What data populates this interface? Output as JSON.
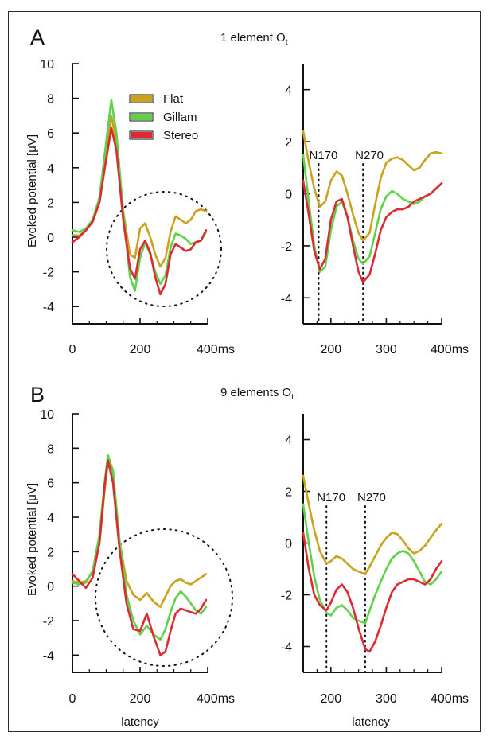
{
  "colors": {
    "flat": "#C9A21E",
    "gillam": "#5FD24A",
    "stereo": "#DD2A32"
  },
  "panels": [
    {
      "label": "A",
      "title": "1 element O",
      "title_sub": "t",
      "ylabel": "Evoked potential [μV]",
      "xlabel": "",
      "legend": [
        {
          "name": "Flat",
          "key": "flat"
        },
        {
          "name": "Gillam",
          "key": "gillam"
        },
        {
          "name": "Stereo",
          "key": "stereo"
        }
      ],
      "annotations": [
        "N170",
        "N270"
      ]
    },
    {
      "label": "B",
      "title": "9 elements O",
      "title_sub": "t",
      "ylabel": "Evoked potential [μV]",
      "xlabel": "latency",
      "legend": [],
      "annotations": [
        "N170",
        "N270"
      ]
    }
  ],
  "chart_data": [
    {
      "type": "line",
      "panel": "A-left",
      "xlim": [
        0,
        400
      ],
      "ylim": [
        -5,
        10
      ],
      "xticks": [
        "0",
        "200",
        "400ms"
      ],
      "yticks": [
        "-4",
        "-2",
        "0",
        "2",
        "4",
        "6",
        "8",
        "10"
      ],
      "series": [
        {
          "name": "Flat",
          "key": "flat",
          "x": [
            0,
            20,
            40,
            60,
            80,
            100,
            115,
            130,
            150,
            170,
            185,
            200,
            215,
            230,
            245,
            260,
            275,
            290,
            305,
            320,
            335,
            350,
            365,
            380,
            395
          ],
          "y": [
            0.1,
            0.1,
            0.4,
            0.9,
            2.0,
            4.8,
            7.0,
            5.5,
            1.5,
            -1.0,
            -1.2,
            0.5,
            0.8,
            0.0,
            -1.0,
            -1.7,
            -1.2,
            0.3,
            1.2,
            1.0,
            0.8,
            1.0,
            1.5,
            1.6,
            1.5
          ]
        },
        {
          "name": "Gillam",
          "key": "gillam",
          "x": [
            0,
            20,
            40,
            60,
            80,
            100,
            115,
            130,
            150,
            170,
            185,
            200,
            215,
            230,
            245,
            260,
            275,
            290,
            305,
            320,
            335,
            350,
            365,
            380,
            395
          ],
          "y": [
            0.4,
            0.3,
            0.5,
            1.0,
            2.3,
            5.5,
            7.9,
            6.0,
            1.5,
            -2.3,
            -3.1,
            -1.2,
            -0.3,
            -1.0,
            -2.0,
            -2.7,
            -2.2,
            -0.6,
            0.2,
            0.1,
            -0.1,
            -0.4,
            -0.3,
            -0.2,
            0.3
          ]
        },
        {
          "name": "Stereo",
          "key": "stereo",
          "x": [
            0,
            20,
            40,
            60,
            80,
            100,
            115,
            130,
            150,
            170,
            185,
            200,
            215,
            230,
            245,
            260,
            275,
            290,
            305,
            320,
            335,
            350,
            365,
            380,
            395
          ],
          "y": [
            -0.3,
            0.0,
            0.4,
            0.9,
            2.0,
            4.5,
            6.3,
            5.0,
            1.0,
            -1.8,
            -2.4,
            -0.7,
            -0.2,
            -0.9,
            -2.3,
            -3.3,
            -2.7,
            -1.0,
            -0.4,
            -0.6,
            -0.8,
            -0.7,
            -0.3,
            -0.2,
            0.4
          ]
        }
      ]
    },
    {
      "type": "line",
      "panel": "A-right",
      "xlim": [
        150,
        400
      ],
      "ylim": [
        -5,
        5
      ],
      "xticks": [
        "200",
        "300",
        "400ms"
      ],
      "yticks": [
        "-4",
        "-2",
        "0",
        "2",
        "4"
      ],
      "vlines": [
        {
          "x": 178,
          "label": "N170"
        },
        {
          "x": 258,
          "label": "N270"
        }
      ],
      "series": [
        {
          "name": "Flat",
          "key": "flat",
          "x": [
            150,
            160,
            170,
            180,
            190,
            200,
            210,
            220,
            230,
            240,
            250,
            258,
            270,
            280,
            290,
            300,
            310,
            320,
            330,
            340,
            350,
            360,
            370,
            380,
            390,
            400
          ],
          "y": [
            2.4,
            1.2,
            0.2,
            -0.5,
            -0.3,
            0.5,
            0.85,
            0.7,
            0.0,
            -0.8,
            -1.5,
            -1.8,
            -1.5,
            -0.4,
            0.6,
            1.2,
            1.35,
            1.4,
            1.3,
            1.1,
            0.9,
            1.0,
            1.3,
            1.55,
            1.6,
            1.55
          ]
        },
        {
          "name": "Gillam",
          "key": "gillam",
          "x": [
            150,
            160,
            170,
            180,
            190,
            200,
            210,
            220,
            230,
            240,
            250,
            258,
            270,
            280,
            290,
            300,
            310,
            320,
            330,
            340,
            350,
            360,
            370,
            380,
            390,
            400
          ],
          "y": [
            1.5,
            -0.3,
            -2.0,
            -3.0,
            -2.8,
            -1.4,
            -0.5,
            -0.3,
            -0.9,
            -1.8,
            -2.5,
            -2.7,
            -2.4,
            -1.5,
            -0.6,
            -0.1,
            0.1,
            0.0,
            -0.2,
            -0.3,
            -0.4,
            -0.3,
            -0.1,
            0.0,
            0.2,
            0.4
          ]
        },
        {
          "name": "Stereo",
          "key": "stereo",
          "x": [
            150,
            160,
            170,
            180,
            190,
            200,
            210,
            220,
            230,
            240,
            250,
            258,
            270,
            280,
            290,
            300,
            310,
            320,
            330,
            340,
            350,
            360,
            370,
            380,
            390,
            400
          ],
          "y": [
            0.5,
            -0.8,
            -2.2,
            -2.9,
            -2.5,
            -1.0,
            -0.3,
            -0.2,
            -0.9,
            -2.0,
            -3.0,
            -3.4,
            -3.1,
            -2.3,
            -1.4,
            -0.9,
            -0.7,
            -0.6,
            -0.6,
            -0.5,
            -0.3,
            -0.2,
            -0.1,
            0.0,
            0.2,
            0.4
          ]
        }
      ]
    },
    {
      "type": "line",
      "panel": "B-left",
      "xlim": [
        0,
        400
      ],
      "ylim": [
        -5,
        10
      ],
      "xticks": [
        "0",
        "200",
        "400ms"
      ],
      "yticks": [
        "-4",
        "-2",
        "0",
        "2",
        "4",
        "6",
        "8",
        "10"
      ],
      "series": [
        {
          "name": "Flat",
          "key": "flat",
          "x": [
            0,
            20,
            40,
            60,
            80,
            95,
            105,
            120,
            140,
            160,
            180,
            200,
            220,
            240,
            260,
            275,
            290,
            305,
            320,
            335,
            350,
            365,
            380,
            395
          ],
          "y": [
            0.3,
            0.2,
            0.3,
            0.8,
            2.5,
            5.5,
            7.2,
            6.5,
            2.5,
            0.3,
            -0.5,
            -0.8,
            -0.4,
            -0.9,
            -1.2,
            -0.6,
            0.0,
            0.3,
            0.4,
            0.2,
            0.1,
            0.3,
            0.5,
            0.7
          ]
        },
        {
          "name": "Gillam",
          "key": "gillam",
          "x": [
            0,
            20,
            40,
            60,
            80,
            95,
            105,
            120,
            140,
            160,
            180,
            200,
            220,
            240,
            260,
            275,
            290,
            305,
            320,
            335,
            350,
            365,
            380,
            395
          ],
          "y": [
            0.2,
            0.1,
            0.2,
            0.9,
            3.0,
            6.0,
            7.6,
            6.7,
            2.5,
            -0.5,
            -2.0,
            -2.8,
            -2.3,
            -2.8,
            -3.1,
            -2.5,
            -1.5,
            -0.7,
            -0.3,
            -0.6,
            -1.0,
            -1.4,
            -1.6,
            -1.2
          ]
        },
        {
          "name": "Stereo",
          "key": "stereo",
          "x": [
            0,
            20,
            40,
            60,
            80,
            95,
            105,
            120,
            140,
            160,
            180,
            200,
            220,
            240,
            260,
            275,
            290,
            305,
            320,
            335,
            350,
            365,
            380,
            395
          ],
          "y": [
            0.7,
            0.3,
            -0.1,
            0.5,
            2.5,
            5.8,
            7.3,
            6.0,
            2.0,
            -1.0,
            -2.5,
            -2.6,
            -1.6,
            -2.9,
            -4.0,
            -3.8,
            -2.6,
            -1.6,
            -1.3,
            -1.4,
            -1.5,
            -1.6,
            -1.3,
            -0.8
          ]
        }
      ]
    },
    {
      "type": "line",
      "panel": "B-right",
      "xlim": [
        150,
        400
      ],
      "ylim": [
        -5,
        5
      ],
      "xticks": [
        "200",
        "300",
        "400ms"
      ],
      "yticks": [
        "-4",
        "-2",
        "0",
        "2",
        "4"
      ],
      "xlabel": "latency",
      "vlines": [
        {
          "x": 192,
          "label": "N170"
        },
        {
          "x": 262,
          "label": "N270"
        }
      ],
      "series": [
        {
          "name": "Flat",
          "key": "flat",
          "x": [
            150,
            160,
            170,
            180,
            192,
            200,
            210,
            220,
            230,
            240,
            250,
            262,
            270,
            280,
            290,
            300,
            310,
            320,
            330,
            340,
            350,
            360,
            370,
            380,
            390,
            400
          ],
          "y": [
            2.6,
            1.5,
            0.5,
            -0.3,
            -0.8,
            -0.7,
            -0.5,
            -0.6,
            -0.8,
            -1.0,
            -1.1,
            -1.2,
            -0.9,
            -0.5,
            -0.1,
            0.2,
            0.4,
            0.35,
            0.1,
            -0.2,
            -0.4,
            -0.3,
            -0.1,
            0.2,
            0.5,
            0.75
          ]
        },
        {
          "name": "Gillam",
          "key": "gillam",
          "x": [
            150,
            160,
            170,
            180,
            192,
            200,
            210,
            220,
            230,
            240,
            250,
            262,
            270,
            280,
            290,
            300,
            310,
            320,
            330,
            340,
            350,
            360,
            370,
            380,
            390,
            400
          ],
          "y": [
            1.5,
            0.0,
            -1.3,
            -2.2,
            -2.7,
            -2.8,
            -2.5,
            -2.4,
            -2.6,
            -2.9,
            -3.0,
            -3.1,
            -2.6,
            -2.0,
            -1.5,
            -1.0,
            -0.6,
            -0.4,
            -0.3,
            -0.4,
            -0.7,
            -1.1,
            -1.5,
            -1.6,
            -1.4,
            -1.1
          ]
        },
        {
          "name": "Stereo",
          "key": "stereo",
          "x": [
            150,
            160,
            170,
            180,
            192,
            200,
            210,
            220,
            230,
            240,
            250,
            262,
            270,
            280,
            290,
            300,
            310,
            320,
            330,
            340,
            350,
            360,
            370,
            380,
            390,
            400
          ],
          "y": [
            0.4,
            -1.0,
            -2.0,
            -2.4,
            -2.6,
            -2.3,
            -1.8,
            -1.6,
            -1.9,
            -2.5,
            -3.3,
            -4.1,
            -4.2,
            -3.8,
            -3.2,
            -2.5,
            -1.9,
            -1.6,
            -1.5,
            -1.4,
            -1.4,
            -1.5,
            -1.6,
            -1.4,
            -1.0,
            -0.7
          ]
        }
      ]
    }
  ]
}
